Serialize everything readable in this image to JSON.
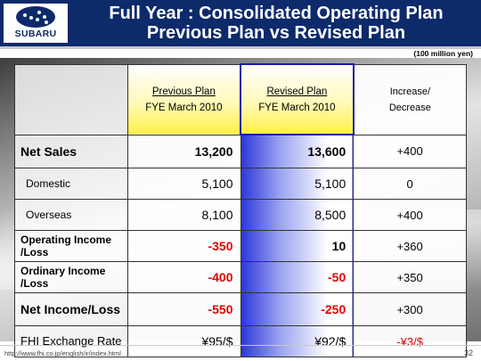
{
  "header": {
    "logo_text": "SUBARU",
    "title_line1": "Full Year : Consolidated Operating Plan",
    "title_line2": "Previous Plan vs Revised Plan"
  },
  "unit": "(100 million yen)",
  "table": {
    "columns": {
      "previous": {
        "line1": "Previous Plan",
        "line2": "FYE March 2010"
      },
      "revised": {
        "line1": "Revised Plan",
        "line2": "FYE March 2010"
      },
      "change": {
        "line1": "Increase/",
        "line2": "Decrease"
      }
    },
    "rows": [
      {
        "label": "Net Sales",
        "previous": "13,200",
        "revised": "13,600",
        "change": "+400"
      },
      {
        "label": "Domestic",
        "previous": "5,100",
        "revised": "5,100",
        "change": "0"
      },
      {
        "label": "Overseas",
        "previous": "8,100",
        "revised": "8,500",
        "change": "+400"
      },
      {
        "label_line1": "Operating Income",
        "label_line2": "/Loss",
        "previous": "-350",
        "revised": "10",
        "change": "+360"
      },
      {
        "label_line1": "Ordinary Income",
        "label_line2": "/Loss",
        "previous": "-400",
        "revised": "-50",
        "change": "+350"
      },
      {
        "label": "Net Income/Loss",
        "previous": "-550",
        "revised": "-250",
        "change": "+300"
      },
      {
        "label": "FHI Exchange Rate",
        "previous": "¥95/$",
        "revised": "¥92/$",
        "change": "-¥3/$"
      }
    ]
  },
  "footer": {
    "url": "http://www.fhi.co.jp/english/ir/index.html",
    "page": "32"
  },
  "colors": {
    "header_bg": "#0d2a6b",
    "negative": "#e00000",
    "highlight_yellow": "#fff04a",
    "highlight_blue": "#2b36d6"
  }
}
